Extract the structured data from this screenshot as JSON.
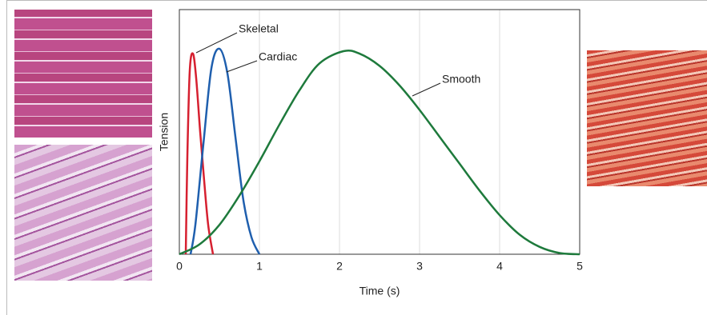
{
  "chart_data": {
    "type": "line",
    "x_label": "Time (s)",
    "y_label": "Tension",
    "xlim": [
      0,
      5
    ],
    "xticks": [
      0,
      1,
      2,
      3,
      4,
      5
    ],
    "ylim": [
      0,
      1
    ],
    "grid": true,
    "series": [
      {
        "name": "Skeletal",
        "color": "#d62030",
        "x": [
          0.08,
          0.1,
          0.13,
          0.17,
          0.21,
          0.26,
          0.31,
          0.36,
          0.42
        ],
        "values": [
          0,
          0.4,
          0.75,
          0.82,
          0.72,
          0.5,
          0.3,
          0.12,
          0
        ]
      },
      {
        "name": "Cardiac",
        "color": "#1f5fae",
        "x": [
          0.14,
          0.2,
          0.3,
          0.4,
          0.5,
          0.6,
          0.7,
          0.8,
          0.9,
          1.0
        ],
        "values": [
          0,
          0.12,
          0.45,
          0.76,
          0.84,
          0.74,
          0.48,
          0.22,
          0.07,
          0
        ]
      },
      {
        "name": "Smooth",
        "color": "#1e7a3c",
        "x": [
          0,
          0.25,
          0.5,
          0.75,
          1,
          1.25,
          1.5,
          1.75,
          2.05,
          2.25,
          2.5,
          2.75,
          3,
          3.25,
          3.5,
          3.75,
          4,
          4.25,
          4.5,
          4.75,
          5
        ],
        "values": [
          0,
          0.04,
          0.12,
          0.24,
          0.38,
          0.53,
          0.67,
          0.78,
          0.83,
          0.82,
          0.77,
          0.69,
          0.59,
          0.48,
          0.37,
          0.26,
          0.16,
          0.08,
          0.03,
          0.005,
          0
        ]
      }
    ]
  }
}
